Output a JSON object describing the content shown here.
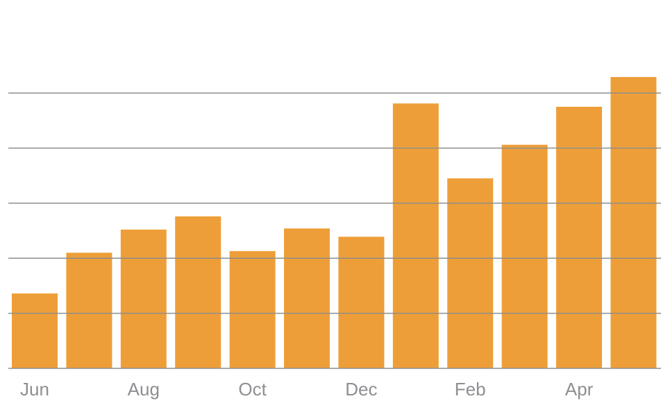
{
  "chart_data": {
    "type": "bar",
    "categories": [
      "Jun",
      null,
      "Aug",
      null,
      "Oct",
      null,
      "Dec",
      null,
      "Feb",
      null,
      "Apr",
      null
    ],
    "values": [
      1.36,
      2.1,
      2.52,
      2.76,
      2.13,
      2.54,
      2.39,
      4.81,
      3.45,
      4.06,
      4.75,
      5.29
    ],
    "color": "#ee9e38",
    "ylim": [
      0,
      6.5
    ],
    "yticks": [
      0,
      1,
      2,
      3,
      4,
      5
    ],
    "grid": true
  }
}
